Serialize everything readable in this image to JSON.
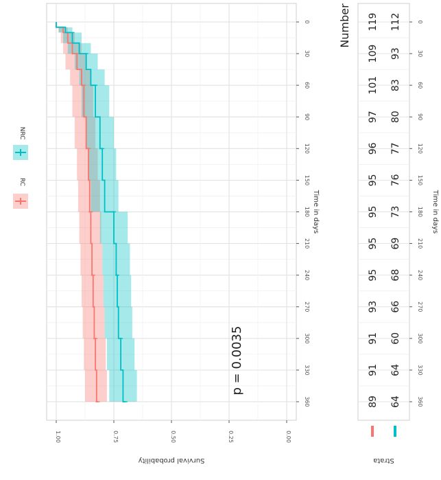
{
  "chart_data": {
    "type": "line",
    "subtype": "kaplan-meier survival curve with confidence bands",
    "orientation": "rotated 90 degrees clockwise",
    "xlabel": "Time in days",
    "ylabel": "Survival probability",
    "x_ticks": [
      "0",
      "30",
      "60",
      "90",
      "120",
      "150",
      "180",
      "210",
      "240",
      "270",
      "300",
      "330",
      "360"
    ],
    "y_ticks": [
      "0.00",
      "0.25",
      "0.50",
      "0.75",
      "1.00"
    ],
    "xlim": [
      0,
      360
    ],
    "ylim": [
      0,
      1
    ],
    "grid": true,
    "legend": {
      "position": "top",
      "title": "",
      "entries": [
        "RC",
        "NRC"
      ]
    },
    "annotation": "p = 0.0035",
    "colors": {
      "RC": "#f8766d",
      "NRC": "#00bfc4"
    },
    "series": [
      {
        "name": "RC",
        "x": [
          0,
          5,
          10,
          20,
          30,
          45,
          60,
          90,
          120,
          150,
          180,
          210,
          240,
          270,
          300,
          330,
          360
        ],
        "y": [
          1.0,
          0.97,
          0.95,
          0.93,
          0.91,
          0.89,
          0.88,
          0.87,
          0.86,
          0.855,
          0.85,
          0.845,
          0.84,
          0.835,
          0.83,
          0.825,
          0.82
        ],
        "lower": [
          1.0,
          0.95,
          0.92,
          0.89,
          0.87,
          0.85,
          0.84,
          0.83,
          0.82,
          0.81,
          0.805,
          0.8,
          0.795,
          0.79,
          0.785,
          0.78,
          0.775
        ],
        "upper": [
          1.0,
          0.99,
          0.98,
          0.97,
          0.96,
          0.94,
          0.93,
          0.92,
          0.91,
          0.905,
          0.9,
          0.895,
          0.89,
          0.885,
          0.88,
          0.875,
          0.87
        ]
      },
      {
        "name": "NRC",
        "x": [
          0,
          5,
          10,
          20,
          30,
          45,
          60,
          90,
          120,
          150,
          180,
          210,
          240,
          270,
          300,
          330,
          360
        ],
        "y": [
          1.0,
          0.96,
          0.93,
          0.9,
          0.87,
          0.85,
          0.83,
          0.81,
          0.8,
          0.79,
          0.75,
          0.74,
          0.735,
          0.73,
          0.72,
          0.71,
          0.7
        ],
        "lower": [
          1.0,
          0.93,
          0.89,
          0.85,
          0.82,
          0.79,
          0.77,
          0.75,
          0.74,
          0.73,
          0.69,
          0.68,
          0.675,
          0.67,
          0.66,
          0.65,
          0.64
        ],
        "upper": [
          1.0,
          0.99,
          0.97,
          0.95,
          0.92,
          0.9,
          0.89,
          0.87,
          0.86,
          0.85,
          0.81,
          0.8,
          0.795,
          0.79,
          0.78,
          0.77,
          0.76
        ]
      }
    ],
    "risk_table": {
      "title": "Number at risk",
      "strata_label": "Strata",
      "xlabel": "Time in days",
      "times": [
        "0",
        "30",
        "60",
        "90",
        "120",
        "150",
        "180",
        "210",
        "240",
        "270",
        "300",
        "330",
        "360"
      ],
      "rows": [
        {
          "name": "RC",
          "values": [
            "119",
            "109",
            "101",
            "97",
            "96",
            "95",
            "95",
            "95",
            "95",
            "93",
            "91",
            "91",
            "89"
          ]
        },
        {
          "name": "NRC",
          "values": [
            "112",
            "93",
            "83",
            "80",
            "77",
            "76",
            "73",
            "69",
            "68",
            "66",
            "60",
            "64",
            "64"
          ]
        }
      ]
    }
  }
}
